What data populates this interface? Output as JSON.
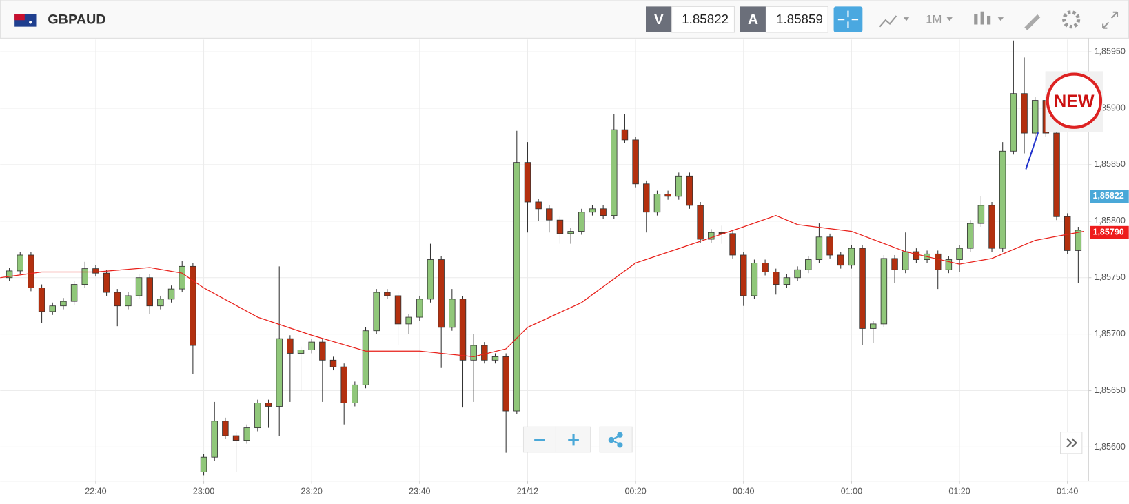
{
  "ui": {
    "symbol": "GBPAUD",
    "bid_label": "V",
    "bid": "1.85822",
    "ask_label": "A",
    "ask": "1.85859",
    "timeframe": "1M",
    "badge": "NEW"
  },
  "chart_data": {
    "type": "candlestick",
    "up_color": "#90c77a",
    "down_color": "#b3300f",
    "x": [
      24,
      26,
      28,
      30,
      32,
      34,
      36,
      38,
      40,
      42,
      44,
      46,
      48,
      50,
      52,
      54,
      56,
      58,
      60,
      62,
      64,
      66,
      68,
      70,
      72,
      74,
      76,
      78,
      80,
      82,
      84,
      86,
      88,
      90,
      92,
      94,
      96,
      98,
      100,
      102,
      104,
      106,
      108,
      110,
      112,
      114,
      116,
      118,
      120,
      122,
      124,
      126,
      128,
      130,
      132,
      134,
      136,
      138,
      140,
      142,
      144,
      146,
      148,
      150,
      152,
      154,
      156,
      158,
      160,
      162,
      164,
      166,
      168,
      170,
      172,
      174,
      176,
      178,
      180,
      182,
      184,
      186,
      188,
      190,
      192,
      194,
      196,
      198,
      200,
      202,
      204,
      206,
      208,
      210,
      212,
      214,
      216,
      218,
      220,
      222
    ],
    "open": [
      1.8575,
      1.85756,
      1.8577,
      1.85741,
      1.8572,
      1.85725,
      1.85729,
      1.85744,
      1.85758,
      1.85754,
      1.85737,
      1.85725,
      1.85734,
      1.8575,
      1.85725,
      1.85731,
      1.8574,
      1.8576,
      1.85578,
      1.85591,
      1.85623,
      1.8561,
      1.85606,
      1.85617,
      1.85639,
      1.85636,
      1.85696,
      1.85683,
      1.85686,
      1.85693,
      1.85677,
      1.85671,
      1.85639,
      1.85655,
      1.85703,
      1.85737,
      1.85734,
      1.85709,
      1.85715,
      1.85731,
      1.85766,
      1.85706,
      1.85731,
      1.85677,
      1.8569,
      1.85677,
      1.8568,
      1.85632,
      1.85852,
      1.85817,
      1.85811,
      1.85801,
      1.85789,
      1.85791,
      1.85808,
      1.85811,
      1.85805,
      1.85881,
      1.85872,
      1.85833,
      1.85808,
      1.85824,
      1.85822,
      1.8584,
      1.85814,
      1.85784,
      1.8579,
      1.85789,
      1.8577,
      1.85734,
      1.85763,
      1.85755,
      1.85744,
      1.8575,
      1.85757,
      1.85766,
      1.85786,
      1.8577,
      1.85761,
      1.85776,
      1.85705,
      1.85709,
      1.85767,
      1.85757,
      1.85773,
      1.85766,
      1.85771,
      1.85757,
      1.85766,
      1.85776,
      1.85798,
      1.85814,
      1.85776,
      1.85862,
      1.85913,
      1.85878,
      1.85907,
      1.85878,
      1.85804,
      1.85774
    ],
    "high": [
      1.85759,
      1.85773,
      1.85773,
      1.85744,
      1.85728,
      1.85732,
      1.85747,
      1.85764,
      1.85761,
      1.85757,
      1.8574,
      1.85737,
      1.85753,
      1.85753,
      1.85734,
      1.85743,
      1.85765,
      1.85763,
      1.85594,
      1.8564,
      1.85626,
      1.85613,
      1.8562,
      1.85642,
      1.85642,
      1.8576,
      1.85699,
      1.85689,
      1.85696,
      1.85696,
      1.8568,
      1.85674,
      1.85658,
      1.85706,
      1.8574,
      1.8574,
      1.85737,
      1.85718,
      1.85734,
      1.8578,
      1.85769,
      1.8574,
      1.85734,
      1.857,
      1.85693,
      1.85683,
      1.85683,
      1.8588,
      1.8587,
      1.8582,
      1.85814,
      1.85804,
      1.85794,
      1.85811,
      1.85814,
      1.85814,
      1.85895,
      1.85895,
      1.85875,
      1.85836,
      1.85827,
      1.85827,
      1.85843,
      1.85843,
      1.85817,
      1.85793,
      1.85796,
      1.85792,
      1.85773,
      1.85766,
      1.85766,
      1.85758,
      1.85753,
      1.8576,
      1.85769,
      1.85798,
      1.85789,
      1.85773,
      1.85779,
      1.85779,
      1.85712,
      1.8577,
      1.8577,
      1.8579,
      1.85776,
      1.85774,
      1.85774,
      1.85769,
      1.85779,
      1.85801,
      1.85822,
      1.85817,
      1.8587,
      1.8596,
      1.85945,
      1.8591,
      1.8591,
      1.85881,
      1.85807,
      1.85795
    ],
    "low": [
      1.85747,
      1.85753,
      1.85738,
      1.8571,
      1.85717,
      1.85722,
      1.85726,
      1.85741,
      1.85751,
      1.85734,
      1.85707,
      1.85722,
      1.85731,
      1.85718,
      1.85722,
      1.85728,
      1.85737,
      1.85665,
      1.85575,
      1.85588,
      1.85607,
      1.85578,
      1.85603,
      1.85614,
      1.85617,
      1.8561,
      1.8564,
      1.8565,
      1.85683,
      1.8564,
      1.85668,
      1.8562,
      1.85636,
      1.85652,
      1.857,
      1.85731,
      1.8569,
      1.857,
      1.85712,
      1.85728,
      1.8567,
      1.85703,
      1.85635,
      1.8564,
      1.85674,
      1.85674,
      1.85595,
      1.85629,
      1.8579,
      1.858,
      1.8579,
      1.8578,
      1.8578,
      1.85788,
      1.85805,
      1.85802,
      1.85802,
      1.85869,
      1.8583,
      1.8579,
      1.85805,
      1.85819,
      1.85819,
      1.85811,
      1.85781,
      1.85781,
      1.8578,
      1.85767,
      1.85725,
      1.85731,
      1.85752,
      1.85735,
      1.85741,
      1.85747,
      1.85754,
      1.85763,
      1.85767,
      1.85758,
      1.85758,
      1.8569,
      1.85692,
      1.85706,
      1.85745,
      1.85754,
      1.85763,
      1.85763,
      1.8574,
      1.85754,
      1.85755,
      1.85773,
      1.85795,
      1.85773,
      1.85773,
      1.85859,
      1.8586,
      1.85875,
      1.85875,
      1.85801,
      1.85771,
      1.85745
    ],
    "close": [
      1.85756,
      1.8577,
      1.85741,
      1.8572,
      1.85725,
      1.85729,
      1.85744,
      1.85758,
      1.85754,
      1.85737,
      1.85725,
      1.85734,
      1.8575,
      1.85725,
      1.85731,
      1.8574,
      1.8576,
      1.8569,
      1.85591,
      1.85623,
      1.8561,
      1.85606,
      1.85617,
      1.85639,
      1.85636,
      1.85696,
      1.85683,
      1.85686,
      1.85693,
      1.85677,
      1.85671,
      1.85639,
      1.85655,
      1.85703,
      1.85737,
      1.85734,
      1.85709,
      1.85715,
      1.85731,
      1.85766,
      1.85706,
      1.85731,
      1.85677,
      1.8569,
      1.85677,
      1.8568,
      1.85632,
      1.85852,
      1.85817,
      1.85811,
      1.85801,
      1.85789,
      1.85791,
      1.85808,
      1.85811,
      1.85805,
      1.85881,
      1.85872,
      1.85833,
      1.85808,
      1.85824,
      1.85822,
      1.8584,
      1.85814,
      1.85784,
      1.8579,
      1.85789,
      1.8577,
      1.85734,
      1.85763,
      1.85755,
      1.85744,
      1.8575,
      1.85757,
      1.85766,
      1.85786,
      1.8577,
      1.85761,
      1.85776,
      1.85705,
      1.85709,
      1.85767,
      1.85757,
      1.85773,
      1.85766,
      1.85771,
      1.85757,
      1.85766,
      1.85776,
      1.85798,
      1.85814,
      1.85776,
      1.85862,
      1.85913,
      1.85878,
      1.85907,
      1.85878,
      1.85804,
      1.85774,
      1.85792
    ],
    "ma": {
      "color": "#e8201a",
      "x": [
        22.3,
        30,
        40,
        50,
        56,
        60,
        70,
        80,
        90,
        100,
        110,
        116,
        120,
        130,
        140,
        150,
        160,
        166,
        170,
        180,
        190,
        200,
        206,
        214,
        223
      ],
      "values": [
        1.8575,
        1.85755,
        1.85755,
        1.85759,
        1.85754,
        1.85741,
        1.85715,
        1.85699,
        1.85685,
        1.85685,
        1.8568,
        1.85687,
        1.85706,
        1.85728,
        1.85763,
        1.85779,
        1.85795,
        1.85805,
        1.85797,
        1.85791,
        1.85773,
        1.85762,
        1.85767,
        1.85783,
        1.85791
      ]
    },
    "price_markers": [
      {
        "value": 1.85822,
        "label": "1,85822",
        "color": "#4aa8d8"
      },
      {
        "value": 1.8579,
        "label": "1,85790",
        "color": "#ee1c1c"
      }
    ],
    "xlim": [
      22.3,
      223.9
    ],
    "ylim": [
      1.8557,
      1.859608
    ],
    "xticks": [
      {
        "value": 40,
        "label": "22:40"
      },
      {
        "value": 60,
        "label": "23:00"
      },
      {
        "value": 80,
        "label": "23:20"
      },
      {
        "value": 100,
        "label": "23:40"
      },
      {
        "value": 120,
        "label": "21/12"
      },
      {
        "value": 140,
        "label": "00:20"
      },
      {
        "value": 160,
        "label": "00:40"
      },
      {
        "value": 180,
        "label": "01:00"
      },
      {
        "value": 200,
        "label": "01:20"
      },
      {
        "value": 220,
        "label": "01:40"
      }
    ],
    "yticks": [
      {
        "value": 1.856,
        "label": "1,85600"
      },
      {
        "value": 1.8565,
        "label": "1,85650"
      },
      {
        "value": 1.857,
        "label": "1,85700"
      },
      {
        "value": 1.8575,
        "label": "1,85750"
      },
      {
        "value": 1.858,
        "label": "1,85800"
      },
      {
        "value": 1.8585,
        "label": "1,85850"
      },
      {
        "value": 1.859,
        "label": "1,85900"
      },
      {
        "value": 1.8595,
        "label": "1,85950"
      }
    ],
    "grid": true
  }
}
